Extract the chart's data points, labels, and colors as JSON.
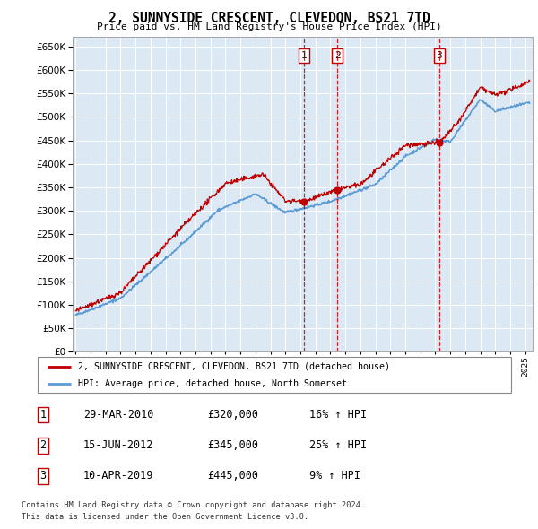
{
  "title": "2, SUNNYSIDE CRESCENT, CLEVEDON, BS21 7TD",
  "subtitle": "Price paid vs. HM Land Registry's House Price Index (HPI)",
  "ytick_values": [
    0,
    50000,
    100000,
    150000,
    200000,
    250000,
    300000,
    350000,
    400000,
    450000,
    500000,
    550000,
    600000,
    650000
  ],
  "ylim": [
    0,
    670000
  ],
  "xlim_start": 1994.8,
  "xlim_end": 2025.5,
  "plot_bg_color": "#dce9f5",
  "hpi_color": "#5b9bd5",
  "price_color": "#c00000",
  "sale_dates": [
    2010.24,
    2012.46,
    2019.27
  ],
  "sale_prices": [
    320000,
    345000,
    445000
  ],
  "sale_labels": [
    "1",
    "2",
    "3"
  ],
  "legend_property": "2, SUNNYSIDE CRESCENT, CLEVEDON, BS21 7TD (detached house)",
  "legend_hpi": "HPI: Average price, detached house, North Somerset",
  "table_entries": [
    [
      "1",
      "29-MAR-2010",
      "£320,000",
      "16% ↑ HPI"
    ],
    [
      "2",
      "15-JUN-2012",
      "£345,000",
      "25% ↑ HPI"
    ],
    [
      "3",
      "10-APR-2019",
      "£445,000",
      "9% ↑ HPI"
    ]
  ],
  "footnote1": "Contains HM Land Registry data © Crown copyright and database right 2024.",
  "footnote2": "This data is licensed under the Open Government Licence v3.0.",
  "dashed_line_color": "#c00000"
}
